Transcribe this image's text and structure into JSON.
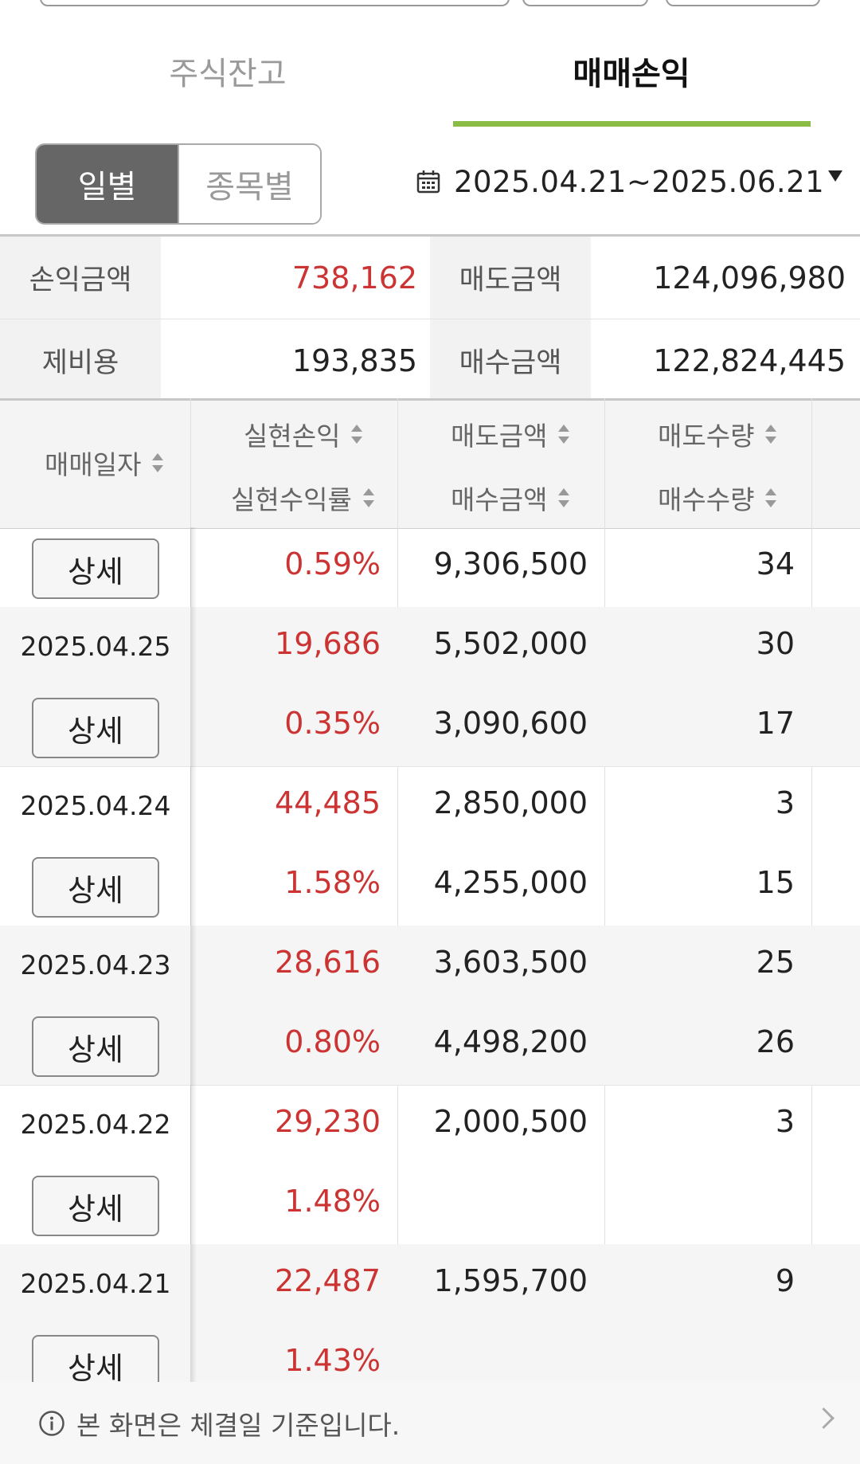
{
  "tabs": [
    {
      "label": "주식잔고",
      "active": false
    },
    {
      "label": "매매손익",
      "active": true
    }
  ],
  "segment": {
    "daily": "일별",
    "by_stock": "종목별"
  },
  "date_range": "2025.04.21~2025.06.21",
  "summary": {
    "pnl_label": "손익금액",
    "pnl_value": "738,162",
    "sell_label": "매도금액",
    "sell_value": "124,096,980",
    "fee_label": "제비용",
    "fee_value": "193,835",
    "buy_label": "매수금액",
    "buy_value": "122,824,445"
  },
  "columns": {
    "date": "매매일자",
    "realized_pl": "실현손익",
    "realized_rate": "실현수익률",
    "sell_amount": "매도금액",
    "buy_amount": "매수금액",
    "sell_qty": "매도수량",
    "buy_qty": "매수수량"
  },
  "partial_row": {
    "detail": "상세",
    "rate": "0.59%",
    "buy": "9,306,500",
    "bq": "34"
  },
  "rows": [
    {
      "date": "2025.04.25",
      "detail": "상세",
      "pl": "19,686",
      "rate": "0.35%",
      "sell": "5,502,000",
      "buy": "3,090,600",
      "sq": "30",
      "bq": "17"
    },
    {
      "date": "2025.04.24",
      "detail": "상세",
      "pl": "44,485",
      "rate": "1.58%",
      "sell": "2,850,000",
      "buy": "4,255,000",
      "sq": "3",
      "bq": "15"
    },
    {
      "date": "2025.04.23",
      "detail": "상세",
      "pl": "28,616",
      "rate": "0.80%",
      "sell": "3,603,500",
      "buy": "4,498,200",
      "sq": "25",
      "bq": "26"
    },
    {
      "date": "2025.04.22",
      "detail": "상세",
      "pl": "29,230",
      "rate": "1.48%",
      "sell": "2,000,500",
      "buy": "",
      "sq": "3",
      "bq": ""
    },
    {
      "date": "2025.04.21",
      "detail": "상세",
      "pl": "22,487",
      "rate": "1.43%",
      "sell": "1,595,700",
      "buy": "",
      "sq": "9",
      "bq": ""
    }
  ],
  "footer": {
    "notice": "본 화면은 체결일 기준입니다."
  }
}
